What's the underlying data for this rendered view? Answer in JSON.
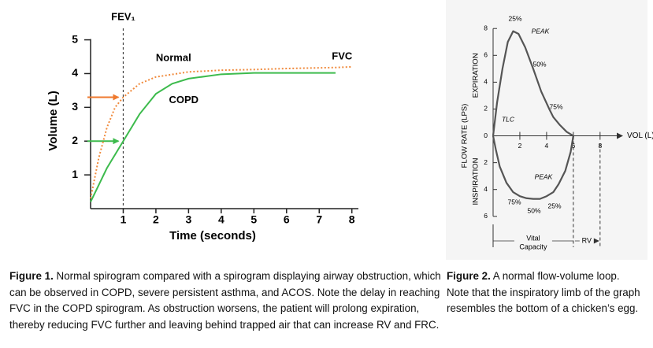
{
  "chart_data": [
    {
      "type": "line",
      "xlabel": "Time (seconds)",
      "ylabel": "Volume (L)",
      "xlim": [
        0,
        8.2
      ],
      "ylim": [
        0,
        5.2
      ],
      "xticks": [
        1,
        2,
        3,
        4,
        5,
        6,
        7,
        8
      ],
      "yticks": [
        1,
        2,
        3,
        4,
        5
      ],
      "marker_label": "FEV₁",
      "marker_x": 1,
      "end_label": "FVC",
      "arrows": [
        {
          "y": 3.3,
          "color": "#ef7a2e"
        },
        {
          "y": 2.0,
          "color": "#3dbb4d"
        }
      ],
      "series": [
        {
          "name": "Normal",
          "color": "#f08a3c",
          "dash": true,
          "x": [
            0,
            0.25,
            0.5,
            0.75,
            1,
            1.5,
            2,
            3,
            4,
            5,
            6,
            7,
            7.5,
            8
          ],
          "values": [
            0.3,
            1.5,
            2.4,
            3.0,
            3.3,
            3.7,
            3.9,
            4.05,
            4.1,
            4.12,
            4.15,
            4.17,
            4.18,
            4.2
          ]
        },
        {
          "name": "COPD",
          "color": "#3dbb4d",
          "dash": false,
          "x": [
            0,
            0.5,
            1,
            1.5,
            2,
            2.5,
            3,
            4,
            5,
            6,
            7,
            7.5
          ],
          "values": [
            0.2,
            1.2,
            2.0,
            2.8,
            3.4,
            3.7,
            3.85,
            3.98,
            4.02,
            4.02,
            4.02,
            4.02
          ]
        }
      ]
    },
    {
      "type": "loop",
      "xlabel": "VOL (L)",
      "ylabel": "FLOW RATE (LPS)",
      "ylabel_top": "EXPIRATION",
      "ylabel_bottom": "INSPIRATION",
      "xlim": [
        0,
        8.6
      ],
      "ylim": [
        -6.6,
        8.6
      ],
      "xticks": [
        2,
        4,
        6,
        8
      ],
      "yticks": [
        {
          "value": -6,
          "label": "6"
        },
        {
          "value": -4,
          "label": "4"
        },
        {
          "value": -2,
          "label": "2"
        },
        0,
        2,
        4,
        6,
        8
      ],
      "series": [
        {
          "color": "#555555",
          "x": [
            0,
            0.3,
            0.7,
            1.1,
            1.5,
            1.9,
            2.4,
            3.0,
            3.6,
            4.2,
            4.5,
            5.0,
            5.5,
            6.0,
            5.8,
            5.4,
            4.9,
            4.5,
            4.0,
            3.5,
            3.0,
            2.5,
            2.0,
            1.5,
            1.0,
            0.5,
            0.2,
            0
          ],
          "values": [
            0,
            2.5,
            5.0,
            7.0,
            7.8,
            7.6,
            6.6,
            5.0,
            3.3,
            2.0,
            1.4,
            0.8,
            0.3,
            0,
            -1.2,
            -2.6,
            -3.6,
            -4.2,
            -4.5,
            -4.7,
            -4.7,
            -4.65,
            -4.5,
            -4.2,
            -3.5,
            -2.3,
            -1.0,
            0
          ]
        }
      ],
      "annotations": [
        "25%",
        "PEAK",
        "50%",
        "75%",
        "TLC",
        "PEAK",
        "75%",
        "50%",
        "25%"
      ],
      "vc_label": [
        "Vital",
        "Capacity"
      ],
      "vc_range": [
        0,
        6
      ],
      "rv_label": "RV",
      "rv_range": [
        6,
        8
      ]
    }
  ],
  "captions": [
    {
      "label": "Figure 1.",
      "text": "Normal spirogram compared with a spirogram displaying airway obstruction, which can be observed in COPD, severe persistent asthma, and ACOS. Note the delay in reaching FVC in the COPD spirogram. As obstruction worsens, the patient will prolong expiration, thereby reducing FVC further and leaving behind trapped air that can increase RV and FRC."
    },
    {
      "label": "Figure 2.",
      "text": "A normal flow-volume loop. Note that the inspiratory limb of the graph resembles the bottom of a chicken’s egg."
    }
  ]
}
